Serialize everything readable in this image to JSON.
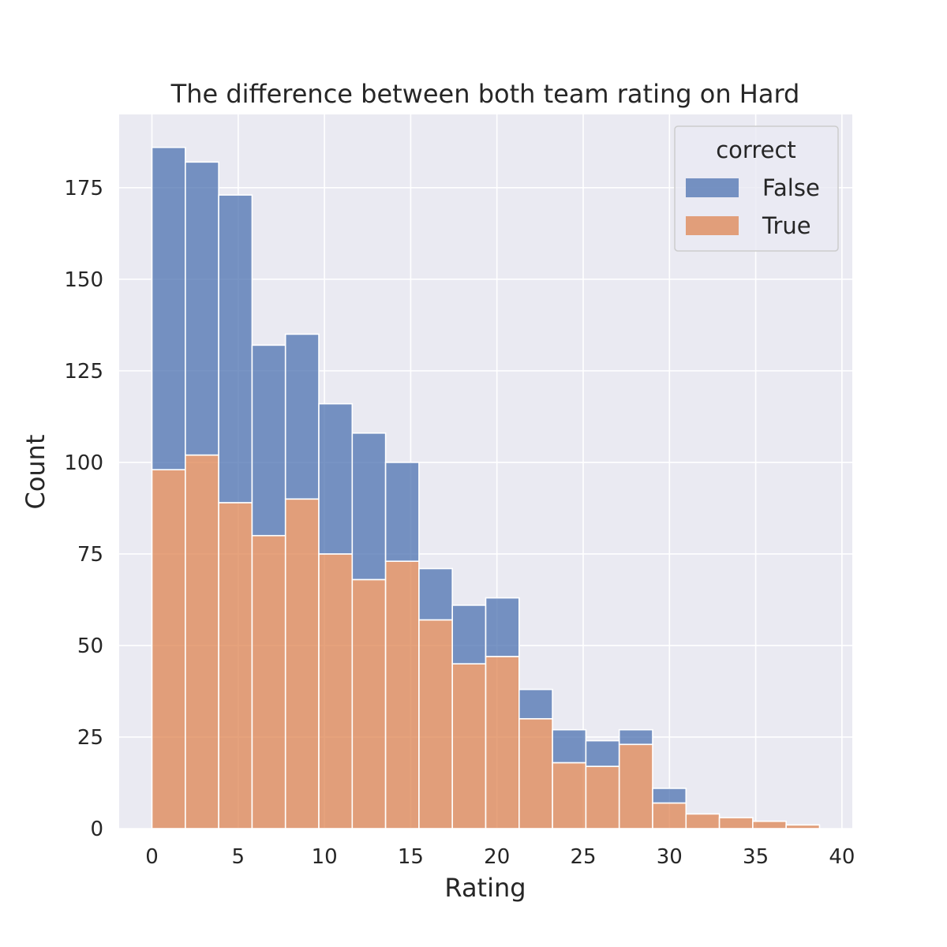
{
  "chart_data": {
    "type": "bar",
    "stacked": true,
    "title": "The difference between both team rating on Hard",
    "xlabel": "Rating",
    "ylabel": "Count",
    "bin_edges": [
      0,
      1.935,
      3.87,
      5.805,
      7.74,
      9.675,
      11.61,
      13.545,
      15.48,
      17.415,
      19.35,
      21.285,
      23.22,
      25.155,
      27.09,
      29.025,
      30.96,
      32.895,
      34.83,
      36.765,
      38.7
    ],
    "series": [
      {
        "name": "True",
        "values": [
          98,
          102,
          89,
          80,
          90,
          75,
          68,
          73,
          57,
          45,
          47,
          30,
          18,
          17,
          23,
          7,
          4,
          3,
          2,
          1
        ]
      },
      {
        "name": "False",
        "values": [
          88,
          80,
          84,
          52,
          45,
          41,
          40,
          27,
          14,
          16,
          16,
          8,
          9,
          7,
          4,
          4,
          0,
          0,
          0,
          0
        ]
      }
    ],
    "xlim": [
      -1.9,
      40.6
    ],
    "ylim": [
      0,
      195
    ],
    "xticks": [
      0,
      5,
      10,
      15,
      20,
      25,
      30,
      35,
      40
    ],
    "yticks": [
      0,
      25,
      50,
      75,
      100,
      125,
      150,
      175
    ],
    "grid": true,
    "legend": {
      "title": "correct",
      "placement": "top-right",
      "entries": [
        "False",
        "True"
      ]
    },
    "colors": {
      "False": "#4c72b0",
      "True": "#dd8452",
      "background": "#eaeaf2",
      "grid": "#ffffff"
    }
  }
}
